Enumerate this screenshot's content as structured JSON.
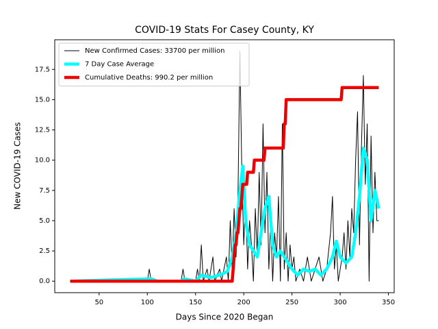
{
  "chart_data": {
    "type": "line",
    "title": "COVID-19 Stats For Casey County, KY",
    "xlabel": "Days Since 2020 Began",
    "ylabel": "New COVID-19 Cases",
    "xlim": [
      4,
      356
    ],
    "xticks": [
      50,
      100,
      150,
      200,
      250,
      300,
      350
    ],
    "ylim": [
      -0.95,
      19.95
    ],
    "yticks": [
      {
        "value": 0,
        "label": "0.0"
      },
      2.5,
      {
        "value": 5,
        "label": "5.0"
      },
      7.5,
      {
        "value": 10,
        "label": "10.0"
      },
      12.5,
      {
        "value": 15,
        "label": "15.0"
      },
      17.5
    ],
    "legend": "upper left",
    "series": [
      {
        "name": "New Confirmed Cases: 33700 per million",
        "color": "#000000",
        "width": 1,
        "x": [
          20,
          100,
          102,
          104,
          135,
          137,
          139,
          150,
          152,
          154,
          156,
          158,
          162,
          164,
          168,
          170,
          175,
          177,
          182,
          184,
          186,
          188,
          190,
          192,
          194,
          196,
          198,
          200,
          202,
          204,
          206,
          208,
          210,
          212,
          214,
          216,
          218,
          220,
          222,
          224,
          226,
          228,
          230,
          232,
          234,
          236,
          238,
          240,
          242,
          244,
          246,
          248,
          250,
          252,
          254,
          258,
          262,
          266,
          270,
          274,
          278,
          282,
          286,
          290,
          292,
          294,
          296,
          298,
          302,
          304,
          306,
          308,
          310,
          312,
          314,
          316,
          318,
          320,
          322,
          324,
          326,
          328,
          330,
          332,
          334,
          336,
          338,
          340
        ],
        "values": [
          0,
          0,
          1,
          0,
          0,
          1,
          0,
          0,
          1,
          0,
          3,
          0,
          1,
          0,
          2,
          0,
          1,
          0,
          2,
          0,
          5,
          1,
          6,
          2,
          7,
          19,
          9,
          3,
          7,
          1,
          5,
          3,
          0,
          6,
          2,
          9,
          3,
          13,
          4,
          9,
          1,
          5,
          0,
          4,
          2,
          7,
          0,
          13,
          1,
          4,
          0,
          3,
          1,
          2,
          0,
          1,
          0,
          2,
          0,
          1,
          2,
          0,
          1,
          4,
          7,
          1,
          3,
          0,
          2,
          4,
          1,
          5,
          2,
          6,
          4,
          10,
          14,
          3,
          11,
          17,
          8,
          13,
          0,
          12,
          4,
          9,
          5,
          5
        ]
      },
      {
        "name": "7 Day Case Average",
        "color": "#00ffff",
        "width": 4.5,
        "x": [
          20,
          104,
          110,
          135,
          138,
          150,
          156,
          165,
          175,
          183,
          188,
          192,
          196,
          199,
          202,
          206,
          210,
          214,
          218,
          222,
          226,
          230,
          234,
          238,
          242,
          246,
          250,
          256,
          262,
          268,
          274,
          280,
          286,
          292,
          296,
          300,
          306,
          312,
          316,
          320,
          324,
          328,
          332,
          336,
          340
        ],
        "values": [
          0,
          0.2,
          0,
          0,
          0.2,
          0,
          0.5,
          0.3,
          0.5,
          0.8,
          2,
          4,
          7.5,
          9.5,
          5,
          3,
          2.5,
          2,
          4,
          6,
          7,
          3,
          2,
          2.5,
          2,
          1.5,
          1,
          0.5,
          1,
          0.8,
          1,
          0.5,
          1,
          2,
          3.3,
          2,
          1.5,
          2,
          4,
          7,
          11,
          10,
          5,
          7.5,
          6
        ]
      },
      {
        "name": "Cumulative Deaths: 990.2 per million",
        "color": "#ee0000",
        "width": 4.5,
        "x": [
          20,
          188,
          189,
          190,
          191,
          192,
          193,
          194,
          195,
          196,
          197,
          198,
          199,
          203,
          204,
          210,
          211,
          221,
          222,
          241,
          242,
          243,
          244,
          301,
          302,
          340
        ],
        "values": [
          0,
          0,
          1,
          2,
          3,
          3,
          4,
          4,
          5,
          6,
          6,
          7,
          8,
          8,
          9,
          9,
          10,
          10,
          11,
          11,
          13,
          13,
          15,
          15,
          16,
          16
        ]
      }
    ]
  }
}
